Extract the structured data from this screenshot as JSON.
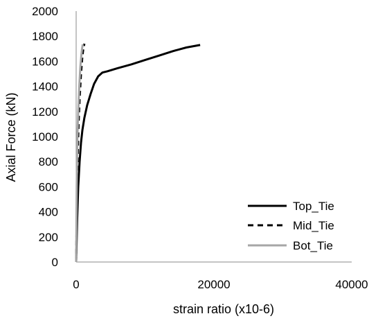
{
  "chart_data": {
    "type": "line",
    "title": "",
    "xlabel": "strain ratio (x10-6)",
    "ylabel": "Axial Force (kN)",
    "xlim": [
      0,
      40000
    ],
    "ylim": [
      0,
      2000
    ],
    "x_ticks": [
      "0",
      "20000",
      "40000"
    ],
    "y_ticks": [
      "0",
      "200",
      "400",
      "600",
      "800",
      "1000",
      "1200",
      "1400",
      "1600",
      "1800",
      "2000"
    ],
    "grid": false,
    "legend_position": "right",
    "series": [
      {
        "name": "Top_Tie",
        "style": "solid",
        "color": "#000000",
        "x": [
          0,
          150,
          300,
          500,
          700,
          900,
          1200,
          1600,
          2100,
          2600,
          3200,
          3800,
          4500,
          6000,
          8000,
          10000,
          12000,
          14000,
          16000,
          18000
        ],
        "y": [
          0,
          350,
          600,
          800,
          950,
          1050,
          1150,
          1250,
          1340,
          1420,
          1480,
          1510,
          1520,
          1545,
          1575,
          1610,
          1645,
          1680,
          1710,
          1730
        ]
      },
      {
        "name": "Mid_Tie",
        "style": "dashed",
        "color": "#000000",
        "x": [
          0,
          100,
          200,
          350,
          500,
          700,
          900,
          1050,
          1200
        ],
        "y": [
          0,
          450,
          800,
          1100,
          1300,
          1500,
          1640,
          1700,
          1740
        ]
      },
      {
        "name": "Bot_Tie",
        "style": "solid",
        "color": "#a6a6a6",
        "x": [
          0,
          80,
          180,
          300,
          450,
          600,
          750,
          850,
          950
        ],
        "y": [
          0,
          600,
          1000,
          1200,
          1400,
          1550,
          1650,
          1700,
          1735
        ]
      }
    ]
  }
}
